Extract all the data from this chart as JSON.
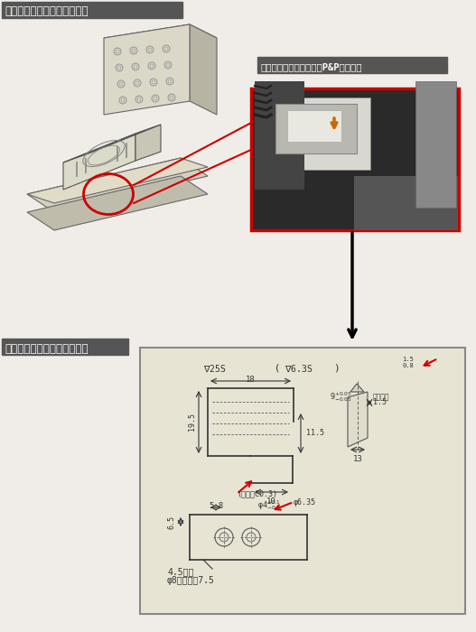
{
  "title1": "【図１】移載自動機の全体図",
  "title1_label": "【写真１】移載自動機のP&Pユニット",
  "title2": "【図２】チャックツメ部品図",
  "bg_color": "#f0ede8",
  "title_bg": "#555555",
  "title_fg": "#ffffff",
  "photo_border": "#cc0000",
  "arrow_color": "#000000",
  "red_line_color": "#cc0000",
  "drawing_bg": "#e8e4d4",
  "drawing_border": "#888888",
  "fig_width": 5.27,
  "fig_height": 7.0,
  "fig_dpi": 100
}
